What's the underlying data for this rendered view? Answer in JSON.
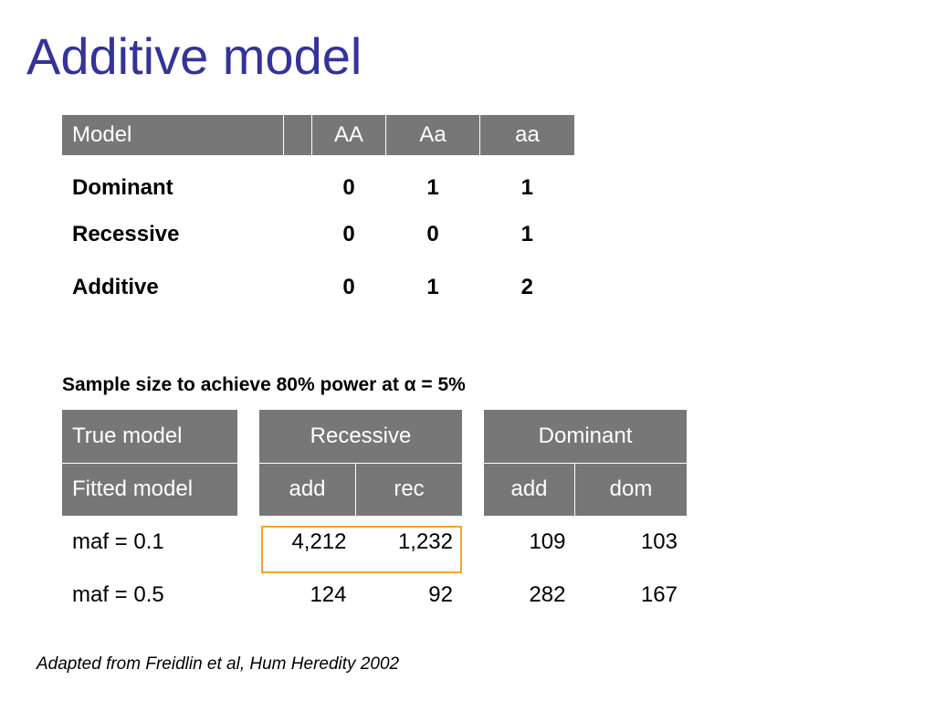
{
  "title": "Additive model",
  "model_table": {
    "headers": [
      "Model",
      "AA",
      "Aa",
      "aa"
    ],
    "rows": [
      {
        "model": "Dominant",
        "AA": "0",
        "Aa": "1",
        "aa": "1"
      },
      {
        "model": "Recessive",
        "AA": "0",
        "Aa": "0",
        "aa": "1"
      },
      {
        "model": "Additive",
        "AA": "0",
        "Aa": "1",
        "aa": "2"
      }
    ]
  },
  "subtitle": "Sample size to achieve 80% power at α = 5%",
  "sample_table": {
    "true_model_label": "True model",
    "fitted_model_label": "Fitted model",
    "groups": [
      "Recessive",
      "Dominant"
    ],
    "fitted": [
      "add",
      "rec",
      "add",
      "dom"
    ],
    "rows": [
      {
        "label": "maf = 0.1",
        "values": [
          "4,212",
          "1,232",
          "109",
          "103"
        ]
      },
      {
        "label": "maf = 0.5",
        "values": [
          "124",
          "92",
          "282",
          "167"
        ]
      }
    ]
  },
  "highlight_color": "#f5a623",
  "title_color": "#333399",
  "header_bg": "#777777",
  "source": "Adapted from Freidlin et al, Hum Heredity 2002"
}
